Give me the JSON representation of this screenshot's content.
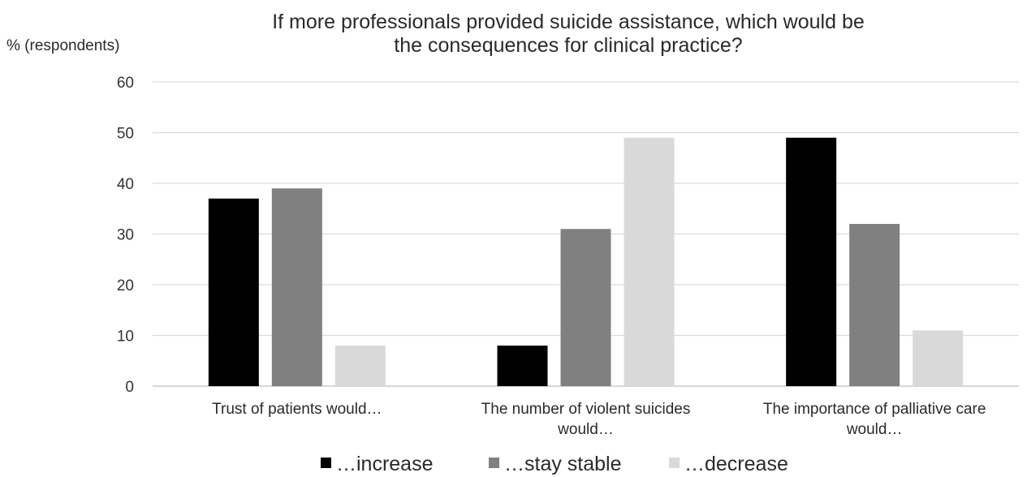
{
  "chart_data": {
    "type": "bar",
    "title_lines": [
      "If more professionals provided suicide assistance, which would be",
      "the consequences for clinical practice?"
    ],
    "ylabel": "% (respondents)",
    "xlabel": "",
    "ylim": [
      0,
      60
    ],
    "yticks": [
      0,
      10,
      20,
      30,
      40,
      50,
      60
    ],
    "grid": true,
    "legend_position": "bottom",
    "categories": [
      [
        "Trust of patients would…"
      ],
      [
        "The number of violent suicides",
        "would…"
      ],
      [
        "The importance of palliative care",
        "would…"
      ]
    ],
    "series": [
      {
        "name": "…increase",
        "color": "#000000",
        "values": [
          37,
          8,
          49
        ]
      },
      {
        "name": "…stay stable",
        "color": "#808080",
        "values": [
          39,
          31,
          32
        ]
      },
      {
        "name": "…decrease",
        "color": "#d9d9d9",
        "values": [
          8,
          49,
          11
        ]
      }
    ]
  }
}
